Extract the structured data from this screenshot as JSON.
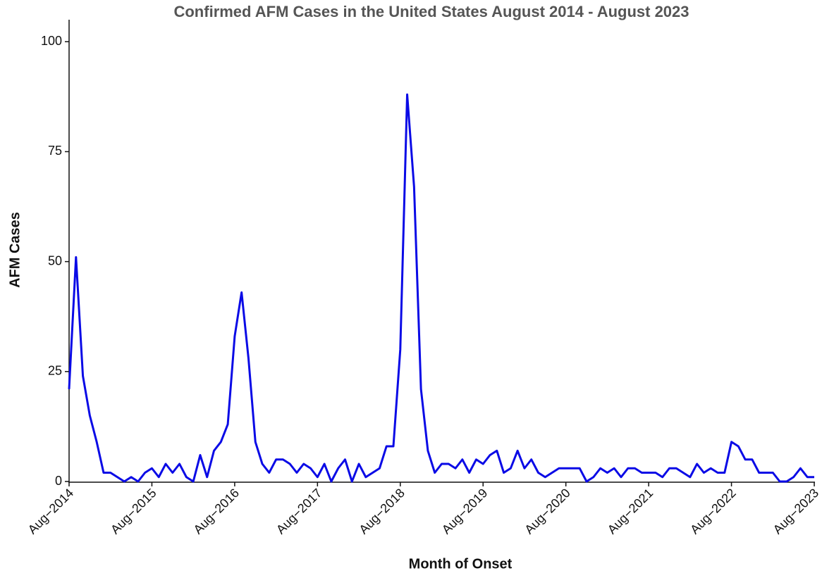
{
  "chart_data": {
    "type": "line",
    "title": "Confirmed AFM Cases in the United States August 2014 - August 2023",
    "x_label": "Month of Onset",
    "y_label": "AFM Cases",
    "categories": [
      "Aug−2014",
      null,
      null,
      null,
      null,
      null,
      null,
      null,
      null,
      null,
      null,
      null,
      "Aug−2015",
      null,
      null,
      null,
      null,
      null,
      null,
      null,
      null,
      null,
      null,
      null,
      "Aug−2016",
      null,
      null,
      null,
      null,
      null,
      null,
      null,
      null,
      null,
      null,
      null,
      "Aug−2017",
      null,
      null,
      null,
      null,
      null,
      null,
      null,
      null,
      null,
      null,
      null,
      "Aug−2018",
      null,
      null,
      null,
      null,
      null,
      null,
      null,
      null,
      null,
      null,
      null,
      "Aug−2019",
      null,
      null,
      null,
      null,
      null,
      null,
      null,
      null,
      null,
      null,
      null,
      "Aug−2020",
      null,
      null,
      null,
      null,
      null,
      null,
      null,
      null,
      null,
      null,
      null,
      "Aug−2021",
      null,
      null,
      null,
      null,
      null,
      null,
      null,
      null,
      null,
      null,
      null,
      "Aug−2022",
      null,
      null,
      null,
      null,
      null,
      null,
      null,
      null,
      null,
      null,
      null,
      "Aug−2023"
    ],
    "values": [
      21,
      51,
      24,
      15,
      9,
      2,
      2,
      1,
      0,
      1,
      0,
      2,
      3,
      1,
      4,
      2,
      4,
      1,
      0,
      6,
      1,
      7,
      9,
      13,
      33,
      43,
      28,
      9,
      4,
      2,
      5,
      5,
      4,
      2,
      4,
      3,
      1,
      4,
      0,
      3,
      5,
      0,
      4,
      1,
      2,
      3,
      8,
      8,
      30,
      88,
      67,
      21,
      7,
      2,
      4,
      4,
      3,
      5,
      2,
      5,
      4,
      6,
      7,
      2,
      3,
      7,
      3,
      5,
      2,
      1,
      2,
      3,
      3,
      3,
      3,
      0,
      1,
      3,
      2,
      3,
      1,
      3,
      3,
      2,
      2,
      2,
      1,
      3,
      3,
      2,
      1,
      4,
      2,
      3,
      2,
      2,
      9,
      8,
      5,
      5,
      2,
      2,
      2,
      0,
      0,
      1,
      3,
      1,
      1
    ],
    "color": "#0a0ae6",
    "ylim": [
      0,
      105
    ],
    "yticks": [
      0,
      25,
      50,
      75,
      100
    ],
    "grid": false
  }
}
